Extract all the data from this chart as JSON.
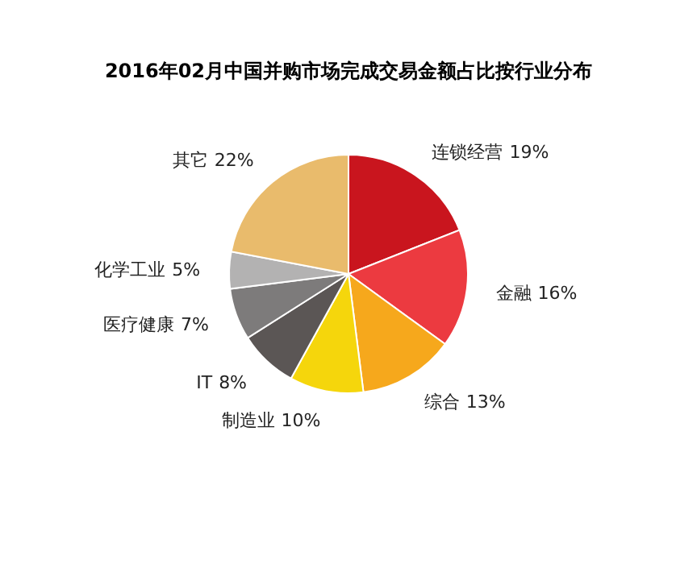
{
  "chart_data": {
    "type": "pie",
    "title": "2016年02月中国并购市场完成交易金额占比按行业分布",
    "categories": [
      "连锁经营",
      "金融",
      "综合",
      "制造业",
      "IT",
      "医疗健康",
      "化学工业",
      "其它"
    ],
    "values": [
      19,
      16,
      13,
      10,
      8,
      7,
      5,
      22
    ],
    "value_labels": [
      "19%",
      "16%",
      "13%",
      "10%",
      "8%",
      "7%",
      "5%",
      "22%"
    ],
    "colors": [
      "#c9151e",
      "#ec3a40",
      "#f6a81c",
      "#f5d60c",
      "#5b5655",
      "#7d7b7b",
      "#b3b2b2",
      "#e9bb6c"
    ]
  }
}
